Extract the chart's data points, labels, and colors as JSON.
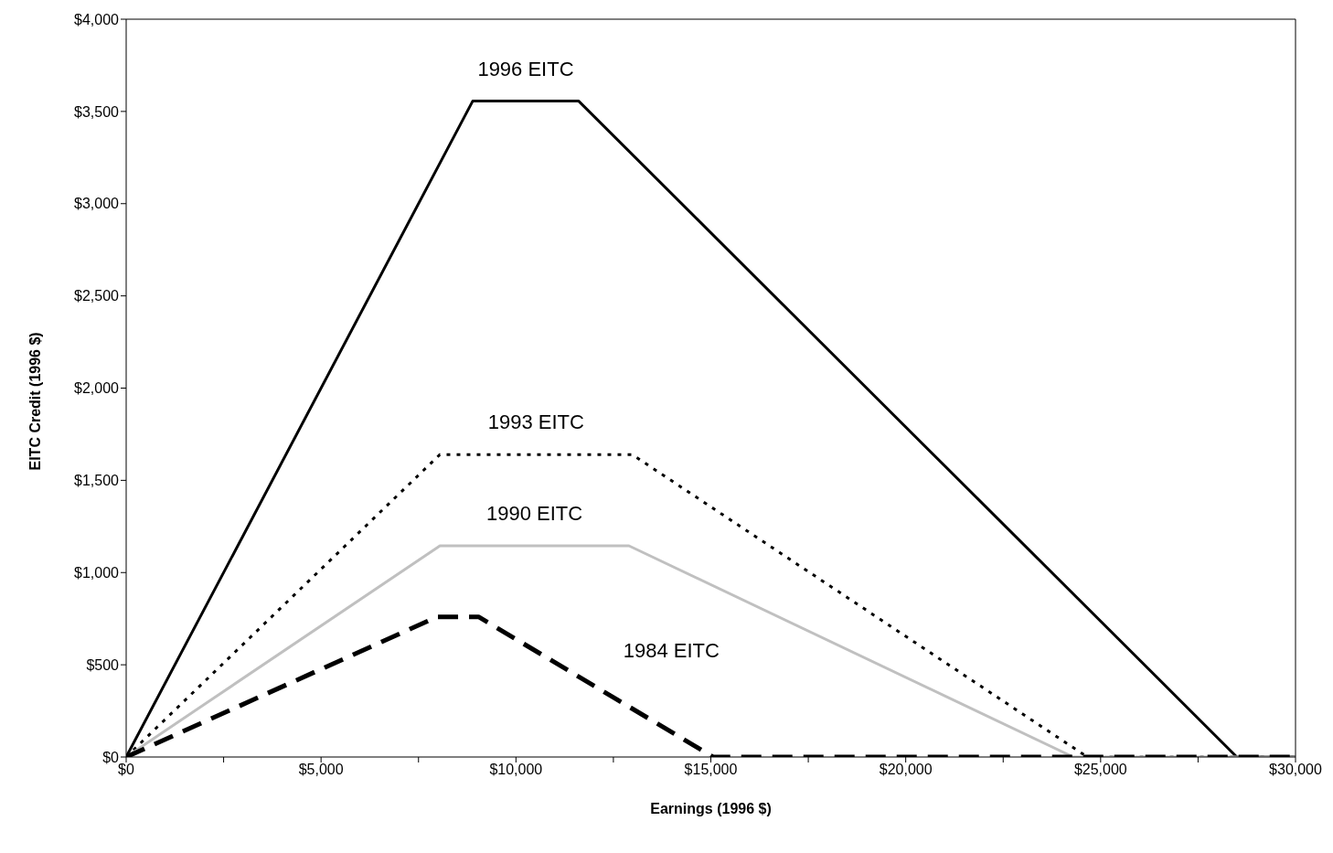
{
  "chart_data": {
    "type": "line",
    "xlabel": "Earnings (1996 $)",
    "ylabel": "EITC Credit (1996 $)",
    "series": [
      {
        "name": "1996 EITC",
        "color": "#000000",
        "line_style": "solid",
        "x": [
          0,
          8890,
          11610,
          28495,
          30000
        ],
        "values": [
          0,
          3556,
          3556,
          0,
          0
        ]
      },
      {
        "name": "1993 EITC",
        "color": "#000000",
        "line_style": "dotted",
        "x": [
          0,
          8050,
          12980,
          24660,
          30000
        ],
        "values": [
          0,
          1640,
          1640,
          0,
          0
        ]
      },
      {
        "name": "1990 EITC",
        "color": "#c0c0c0",
        "line_style": "solid",
        "x": [
          0,
          8050,
          12900,
          24300,
          30000
        ],
        "values": [
          0,
          1145,
          1145,
          0,
          0
        ]
      },
      {
        "name": "1984 EITC",
        "color": "#000000",
        "line_style": "dashed",
        "x": [
          0,
          7980,
          9040,
          15060,
          30000
        ],
        "values": [
          0,
          760,
          760,
          0,
          0
        ]
      }
    ],
    "xlim": [
      0,
      30000
    ],
    "xticks": [
      {
        "value": 0,
        "label": "$0"
      },
      {
        "value": 2500,
        "label": null
      },
      {
        "value": 5000,
        "label": "$5,000"
      },
      {
        "value": 7500,
        "label": null
      },
      {
        "value": 10000,
        "label": "$10,000"
      },
      {
        "value": 12500,
        "label": null
      },
      {
        "value": 15000,
        "label": "$15,000"
      },
      {
        "value": 17500,
        "label": null
      },
      {
        "value": 20000,
        "label": "$20,000"
      },
      {
        "value": 22500,
        "label": null
      },
      {
        "value": 25000,
        "label": "$25,000"
      },
      {
        "value": 27500,
        "label": null
      },
      {
        "value": 30000,
        "label": "$30,000"
      }
    ],
    "ylim": [
      0,
      4000
    ],
    "yticks": [
      {
        "value": 0,
        "label": "$0"
      },
      {
        "value": 500,
        "label": "$500"
      },
      {
        "value": 1000,
        "label": "$1,000"
      },
      {
        "value": 1500,
        "label": "$1,500"
      },
      {
        "value": 2000,
        "label": "$2,000"
      },
      {
        "value": 2500,
        "label": "$2,500"
      },
      {
        "value": 3000,
        "label": "$3,000"
      },
      {
        "value": 3500,
        "label": "$3,500"
      },
      {
        "value": 4000,
        "label": "$4,000"
      }
    ],
    "grid": false,
    "legend": false,
    "marker": "none"
  }
}
